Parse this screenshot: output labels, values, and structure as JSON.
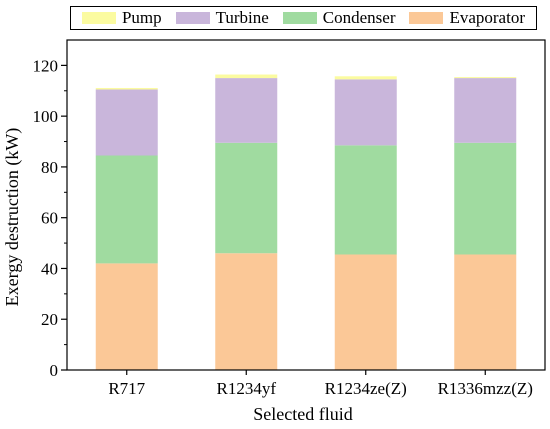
{
  "chart_data": {
    "type": "bar",
    "stacked": true,
    "categories": [
      "R717",
      "R1234yf",
      "R1234ze(Z)",
      "R1336mzz(Z)"
    ],
    "series": [
      {
        "name": "Evaporator",
        "color": "#FBC897",
        "values": [
          42,
          46,
          45.5,
          45.5
        ]
      },
      {
        "name": "Condenser",
        "color": "#A0DBA0",
        "values": [
          42.5,
          43.5,
          43,
          44
        ]
      },
      {
        "name": "Turbine",
        "color": "#C9B6DB",
        "values": [
          26,
          25.5,
          26,
          25.5
        ]
      },
      {
        "name": "Pump",
        "color": "#FBFBA0",
        "values": [
          0.6,
          1.4,
          1.2,
          0.4
        ]
      }
    ],
    "legend_order": [
      "Pump",
      "Turbine",
      "Condenser",
      "Evaporator"
    ],
    "legend_position": "top",
    "xlabel": "Selected fluid",
    "ylabel": "Exergy destruction (kW)",
    "ylim": [
      0,
      130
    ],
    "yticks": [
      0,
      20,
      40,
      60,
      80,
      100,
      120
    ],
    "grid": false
  }
}
